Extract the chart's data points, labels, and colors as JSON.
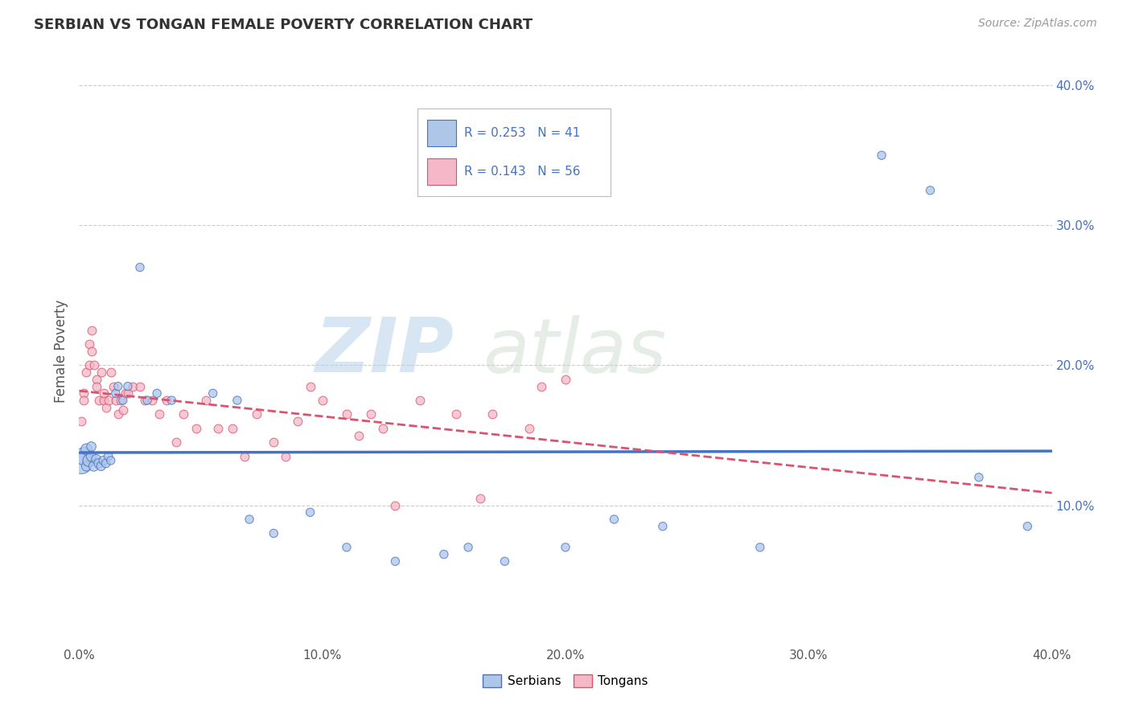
{
  "title": "SERBIAN VS TONGAN FEMALE POVERTY CORRELATION CHART",
  "source": "Source: ZipAtlas.com",
  "ylabel": "Female Poverty",
  "xlim": [
    0.0,
    0.4
  ],
  "ylim": [
    0.0,
    0.42
  ],
  "x_ticks": [
    0.0,
    0.1,
    0.2,
    0.3,
    0.4
  ],
  "x_tick_labels": [
    "0.0%",
    "10.0%",
    "20.0%",
    "30.0%",
    "40.0%"
  ],
  "y_ticks": [
    0.1,
    0.2,
    0.3,
    0.4
  ],
  "y_tick_labels": [
    "10.0%",
    "20.0%",
    "30.0%",
    "40.0%"
  ],
  "serbian_color": "#aec6e8",
  "tongan_color": "#f4b8c8",
  "serbian_line_color": "#4472c4",
  "tongan_line_color": "#d9546e",
  "serbian_R": 0.253,
  "serbian_N": 41,
  "tongan_R": 0.143,
  "tongan_N": 56,
  "legend_serbian_label": "Serbians",
  "legend_tongan_label": "Tongans",
  "background_color": "#ffffff",
  "grid_color": "#cccccc",
  "serbian_x": [
    0.001,
    0.002,
    0.003,
    0.003,
    0.004,
    0.005,
    0.005,
    0.006,
    0.007,
    0.008,
    0.009,
    0.01,
    0.011,
    0.012,
    0.013,
    0.015,
    0.016,
    0.018,
    0.02,
    0.025,
    0.028,
    0.032,
    0.038,
    0.055,
    0.065,
    0.07,
    0.08,
    0.095,
    0.11,
    0.13,
    0.15,
    0.16,
    0.175,
    0.2,
    0.22,
    0.24,
    0.28,
    0.33,
    0.35,
    0.37,
    0.39
  ],
  "serbian_y": [
    0.13,
    0.135,
    0.14,
    0.128,
    0.132,
    0.135,
    0.142,
    0.128,
    0.133,
    0.13,
    0.128,
    0.132,
    0.13,
    0.135,
    0.132,
    0.18,
    0.185,
    0.175,
    0.185,
    0.27,
    0.175,
    0.18,
    0.175,
    0.18,
    0.175,
    0.09,
    0.08,
    0.095,
    0.07,
    0.06,
    0.065,
    0.07,
    0.06,
    0.07,
    0.09,
    0.085,
    0.07,
    0.35,
    0.325,
    0.12,
    0.085
  ],
  "serbian_size": [
    350,
    250,
    100,
    80,
    120,
    80,
    70,
    80,
    70,
    70,
    65,
    65,
    60,
    60,
    55,
    55,
    55,
    55,
    55,
    55,
    55,
    55,
    55,
    55,
    55,
    55,
    55,
    55,
    55,
    55,
    55,
    55,
    55,
    55,
    55,
    55,
    55,
    55,
    55,
    55,
    55
  ],
  "tongan_x": [
    0.001,
    0.002,
    0.002,
    0.003,
    0.004,
    0.004,
    0.005,
    0.005,
    0.006,
    0.007,
    0.007,
    0.008,
    0.009,
    0.01,
    0.01,
    0.011,
    0.012,
    0.013,
    0.014,
    0.015,
    0.016,
    0.017,
    0.018,
    0.019,
    0.02,
    0.022,
    0.025,
    0.027,
    0.03,
    0.033,
    0.036,
    0.04,
    0.043,
    0.048,
    0.052,
    0.057,
    0.063,
    0.068,
    0.073,
    0.08,
    0.085,
    0.09,
    0.095,
    0.1,
    0.11,
    0.115,
    0.12,
    0.125,
    0.13,
    0.14,
    0.155,
    0.165,
    0.17,
    0.185,
    0.19,
    0.2
  ],
  "tongan_y": [
    0.16,
    0.18,
    0.175,
    0.195,
    0.215,
    0.2,
    0.225,
    0.21,
    0.2,
    0.19,
    0.185,
    0.175,
    0.195,
    0.175,
    0.18,
    0.17,
    0.175,
    0.195,
    0.185,
    0.175,
    0.165,
    0.175,
    0.168,
    0.18,
    0.18,
    0.185,
    0.185,
    0.175,
    0.175,
    0.165,
    0.175,
    0.145,
    0.165,
    0.155,
    0.175,
    0.155,
    0.155,
    0.135,
    0.165,
    0.145,
    0.135,
    0.16,
    0.185,
    0.175,
    0.165,
    0.15,
    0.165,
    0.155,
    0.1,
    0.175,
    0.165,
    0.105,
    0.165,
    0.155,
    0.185,
    0.19
  ]
}
